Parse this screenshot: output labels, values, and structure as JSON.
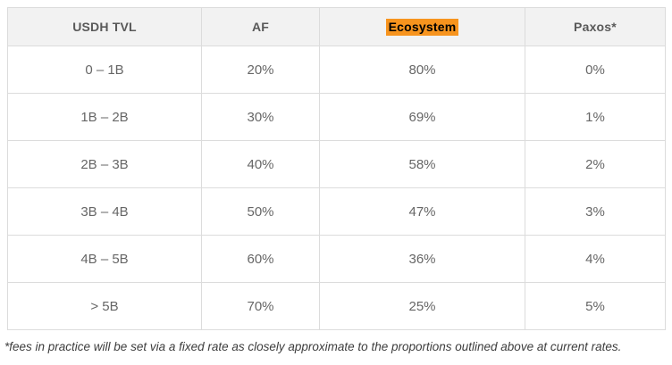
{
  "table": {
    "headers": [
      {
        "label": "USDH TVL",
        "highlighted": false
      },
      {
        "label": "AF",
        "highlighted": false
      },
      {
        "label": "Ecosystem",
        "highlighted": true
      },
      {
        "label": "Paxos*",
        "highlighted": false
      }
    ],
    "rows": [
      {
        "tvl": "0 – 1B",
        "af": "20%",
        "ecosystem": "80%",
        "paxos": "0%"
      },
      {
        "tvl": "1B – 2B",
        "af": "30%",
        "ecosystem": "69%",
        "paxos": "1%"
      },
      {
        "tvl": "2B – 3B",
        "af": "40%",
        "ecosystem": "58%",
        "paxos": "2%"
      },
      {
        "tvl": "3B – 4B",
        "af": "50%",
        "ecosystem": "47%",
        "paxos": "3%"
      },
      {
        "tvl": "4B – 5B",
        "af": "60%",
        "ecosystem": "36%",
        "paxos": "4%"
      },
      {
        "tvl": "> 5B",
        "af": "70%",
        "ecosystem": "25%",
        "paxos": "5%"
      }
    ]
  },
  "footnote": "*fees in practice will be set via a fixed rate as closely approximate to the proportions outlined above at current rates.",
  "colors": {
    "ecosystem_highlight": "#f7941e",
    "header_background": "#f2f2f2",
    "border": "#dcdcdc",
    "header_text": "#595959",
    "body_text": "#666666",
    "footnote_text": "#3d3d3d"
  }
}
